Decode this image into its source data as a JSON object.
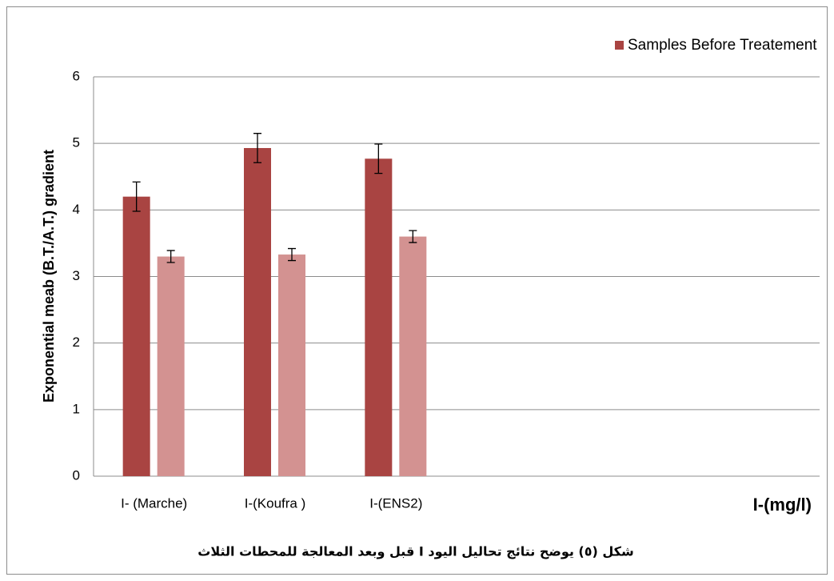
{
  "chart_data": {
    "type": "bar",
    "categories": [
      "I- (Marche)",
      "I-(Koufra )",
      "I-(ENS2)",
      null,
      null,
      null
    ],
    "series": [
      {
        "name": "Samples Before Treatement",
        "color": "#a94442",
        "values": [
          4.2,
          4.93,
          4.77,
          null,
          null,
          null
        ],
        "errors": [
          0.22,
          0.22,
          0.22,
          null,
          null,
          null
        ]
      },
      {
        "color": "#d39291",
        "values": [
          3.3,
          3.33,
          3.6,
          null,
          null,
          null
        ],
        "errors": [
          0.09,
          0.09,
          0.09,
          null,
          null,
          null
        ]
      }
    ],
    "ylim": [
      0,
      6
    ],
    "yticks": [
      0,
      1,
      2,
      3,
      4,
      5,
      6
    ],
    "grid": true,
    "ylabel": "Exponential meab (B.T./A.T.) gradient",
    "xlabel": "I-(mg/l)",
    "caption": "شكل (٥) يوضح نتائج تحاليل اليود  I قبل وبعد المعالجة للمحطات الثلاث",
    "legend": "top-right"
  }
}
